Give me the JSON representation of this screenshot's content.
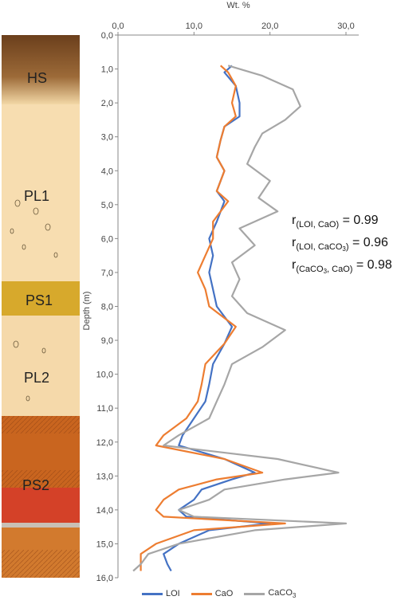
{
  "chart_data": {
    "type": "line",
    "orientation": "depth-profile",
    "xlabel": "Wt. %",
    "ylabel": "Depth (m)",
    "xlim": [
      0,
      30
    ],
    "ylim": [
      0,
      16
    ],
    "x_ticks": [
      "0,0",
      "10,0",
      "20,0",
      "30,0"
    ],
    "y_ticks": [
      "0,0",
      "1,0",
      "2,0",
      "3,0",
      "4,0",
      "5,0",
      "6,0",
      "7,0",
      "8,0",
      "9,0",
      "10,0",
      "11,0",
      "12,0",
      "13,0",
      "14,0",
      "15,0",
      "16,0"
    ],
    "grid": false,
    "legend_position": "bottom",
    "series": [
      {
        "name": "LOI",
        "color": "#4472C4",
        "points": [
          [
            15,
            0.9
          ],
          [
            14,
            1.1
          ],
          [
            15.5,
            1.5
          ],
          [
            16,
            2.0
          ],
          [
            16,
            2.4
          ],
          [
            14,
            2.7
          ],
          [
            13.5,
            3.1
          ],
          [
            13,
            3.6
          ],
          [
            14,
            4.0
          ],
          [
            13,
            4.6
          ],
          [
            14,
            4.9
          ],
          [
            13,
            5.5
          ],
          [
            12,
            6.0
          ],
          [
            12.5,
            6.5
          ],
          [
            12,
            7.0
          ],
          [
            12.5,
            7.5
          ],
          [
            13,
            8.0
          ],
          [
            15,
            8.6
          ],
          [
            14,
            9.1
          ],
          [
            12.5,
            9.7
          ],
          [
            12,
            10.3
          ],
          [
            11.5,
            10.8
          ],
          [
            10,
            11.3
          ],
          [
            8.5,
            11.8
          ],
          [
            8,
            12.1
          ],
          [
            14,
            12.5
          ],
          [
            18,
            12.9
          ],
          [
            15,
            13.1
          ],
          [
            11,
            13.4
          ],
          [
            10,
            13.7
          ],
          [
            8,
            14.0
          ],
          [
            9,
            14.2
          ],
          [
            20,
            14.4
          ],
          [
            12,
            14.6
          ],
          [
            8,
            15.0
          ],
          [
            6,
            15.3
          ],
          [
            6.5,
            15.6
          ],
          [
            7,
            15.8
          ]
        ]
      },
      {
        "name": "CaO",
        "color": "#ED7D31",
        "points": [
          [
            13.5,
            0.9
          ],
          [
            14.5,
            1.1
          ],
          [
            15.5,
            1.5
          ],
          [
            15,
            2.0
          ],
          [
            15.5,
            2.4
          ],
          [
            14,
            2.7
          ],
          [
            13.5,
            3.1
          ],
          [
            13,
            3.6
          ],
          [
            14,
            4.0
          ],
          [
            13,
            4.6
          ],
          [
            14.5,
            4.9
          ],
          [
            12.5,
            5.5
          ],
          [
            12.5,
            6.0
          ],
          [
            11.5,
            6.5
          ],
          [
            10.5,
            7.0
          ],
          [
            11.5,
            7.5
          ],
          [
            12,
            8.0
          ],
          [
            15.5,
            8.6
          ],
          [
            14,
            9.1
          ],
          [
            11.5,
            9.7
          ],
          [
            11,
            10.3
          ],
          [
            10.5,
            10.8
          ],
          [
            9,
            11.3
          ],
          [
            6,
            11.8
          ],
          [
            5,
            12.1
          ],
          [
            14,
            12.5
          ],
          [
            19,
            12.9
          ],
          [
            13,
            13.1
          ],
          [
            8,
            13.4
          ],
          [
            6,
            13.7
          ],
          [
            5,
            14.0
          ],
          [
            6,
            14.2
          ],
          [
            22,
            14.4
          ],
          [
            10,
            14.6
          ],
          [
            5,
            15.0
          ],
          [
            3,
            15.3
          ],
          [
            3,
            15.6
          ],
          [
            3,
            15.8
          ]
        ]
      },
      {
        "name": "CaCO3",
        "color": "#A6A6A6",
        "points": [
          [
            14.5,
            0.9
          ],
          [
            19,
            1.2
          ],
          [
            23,
            1.6
          ],
          [
            24,
            2.1
          ],
          [
            22,
            2.5
          ],
          [
            19,
            2.9
          ],
          [
            18,
            3.3
          ],
          [
            17,
            3.8
          ],
          [
            20,
            4.3
          ],
          [
            18.5,
            4.8
          ],
          [
            21,
            5.2
          ],
          [
            16,
            5.7
          ],
          [
            18,
            6.2
          ],
          [
            15,
            6.7
          ],
          [
            16,
            7.2
          ],
          [
            15,
            7.7
          ],
          [
            17,
            8.2
          ],
          [
            22,
            8.7
          ],
          [
            19,
            9.2
          ],
          [
            15,
            9.7
          ],
          [
            14,
            10.3
          ],
          [
            13,
            10.8
          ],
          [
            12,
            11.3
          ],
          [
            8,
            11.8
          ],
          [
            6,
            12.1
          ],
          [
            21,
            12.5
          ],
          [
            29,
            12.9
          ],
          [
            22,
            13.1
          ],
          [
            14,
            13.4
          ],
          [
            12,
            13.7
          ],
          [
            8,
            14.0
          ],
          [
            10,
            14.2
          ],
          [
            30,
            14.4
          ],
          [
            18,
            14.6
          ],
          [
            8,
            15.0
          ],
          [
            4,
            15.3
          ],
          [
            3,
            15.6
          ],
          [
            2,
            15.8
          ]
        ]
      }
    ],
    "annotations": [
      {
        "base": "r",
        "sub": "(LOI, CaO)",
        "value": "= 0.99"
      },
      {
        "base": "r",
        "sub": "(LOI, CaCO",
        "subsub": "3",
        "subend": ")",
        "value": "= 0.96"
      },
      {
        "base": "r",
        "sub": "(CaCO",
        "subsub": "3",
        "subend": ", CaO)",
        "value": "= 0.98"
      }
    ]
  },
  "stratigraphy": {
    "units": [
      {
        "label": "HS",
        "top": 0,
        "bottom": 1.6,
        "color": "#B07A3E"
      },
      {
        "label": "PL1",
        "top": 1.6,
        "bottom": 7.7,
        "color": "#F7DDB0"
      },
      {
        "label": "PS1",
        "top": 7.7,
        "bottom": 8.7,
        "color": "#D4A528"
      },
      {
        "label": "PL2",
        "top": 8.7,
        "bottom": 11.5,
        "color": "#F5D9AA"
      },
      {
        "label": "PS2",
        "top": 11.5,
        "bottom": 16,
        "color": "#C8601F"
      }
    ]
  },
  "legend": {
    "items": [
      {
        "label": "LOI",
        "color": "#4472C4"
      },
      {
        "label": "CaO",
        "color": "#ED7D31"
      },
      {
        "label": "CaCO",
        "sub": "3",
        "color": "#A6A6A6"
      }
    ]
  }
}
